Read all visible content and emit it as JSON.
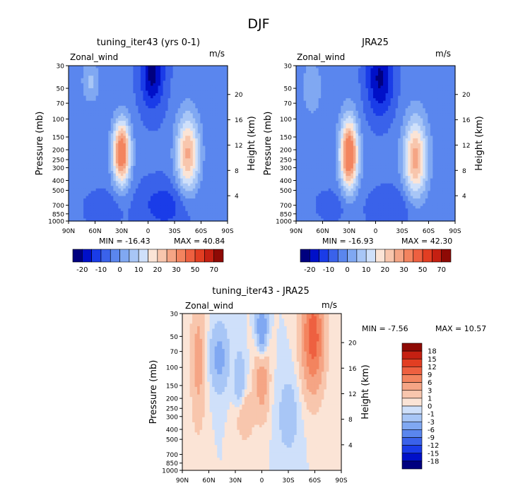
{
  "figure_title": "DJF",
  "chart_data": [
    {
      "type": "contour",
      "title": "tuning_iter43 (yrs 0-1)",
      "variable": "Zonal_wind",
      "units": "m/s",
      "ylabel": "Pressure (mb)",
      "ylabel_right": "Height (km)",
      "x_ticks": [
        "90N",
        "60N",
        "30N",
        "0",
        "30S",
        "60S",
        "90S"
      ],
      "y_ticks": [
        "30",
        "50",
        "70",
        "100",
        "150",
        "200",
        "250",
        "300",
        "400",
        "500",
        "700",
        "850",
        "1000"
      ],
      "height_ticks": [
        "4",
        "8",
        "12",
        "16",
        "20"
      ],
      "min_label": "MIN = -16.43",
      "max_label": "MAX = 40.84",
      "colorbar_levels": [
        "-20",
        "-10",
        "0",
        "10",
        "20",
        "30",
        "50",
        "70"
      ],
      "features": [
        {
          "lat": 30,
          "p": 200,
          "value": 40.84,
          "kind": "max"
        },
        {
          "lat": -45,
          "p": 200,
          "value": 30,
          "kind": "jet"
        },
        {
          "lat": -5,
          "p": 30,
          "value": -16.43,
          "kind": "min"
        }
      ]
    },
    {
      "type": "contour",
      "title": "JRA25",
      "variable": "Zonal_wind",
      "units": "m/s",
      "ylabel": "Pressure (mb)",
      "ylabel_right": "Height (km)",
      "x_ticks": [
        "90N",
        "60N",
        "30N",
        "0",
        "30S",
        "60S",
        "90S"
      ],
      "y_ticks": [
        "30",
        "50",
        "70",
        "100",
        "150",
        "200",
        "250",
        "300",
        "400",
        "500",
        "700",
        "850",
        "1000"
      ],
      "height_ticks": [
        "4",
        "8",
        "12",
        "16",
        "20"
      ],
      "min_label": "MIN = -16.93",
      "max_label": "MAX = 42.30",
      "colorbar_levels": [
        "-20",
        "-10",
        "0",
        "10",
        "20",
        "30",
        "50",
        "70"
      ],
      "features": [
        {
          "lat": 30,
          "p": 200,
          "value": 42.3,
          "kind": "max"
        },
        {
          "lat": -45,
          "p": 250,
          "value": 30,
          "kind": "jet"
        },
        {
          "lat": -5,
          "p": 30,
          "value": -16.93,
          "kind": "min"
        }
      ]
    },
    {
      "type": "contour",
      "title": "tuning_iter43 - JRA25",
      "variable": "Zonal_wind",
      "units": "m/s",
      "ylabel": "Pressure (mb)",
      "ylabel_right": "Height (km)",
      "x_ticks": [
        "90N",
        "60N",
        "30N",
        "0",
        "30S",
        "60S",
        "90S"
      ],
      "y_ticks": [
        "30",
        "50",
        "70",
        "100",
        "150",
        "200",
        "250",
        "300",
        "400",
        "500",
        "700",
        "850",
        "1000"
      ],
      "height_ticks": [
        "4",
        "8",
        "12",
        "16",
        "20"
      ],
      "min_label": "MIN =   -7.56",
      "max_label": "MAX =  10.57",
      "colorbar_levels": [
        "18",
        "15",
        "12",
        "9",
        "6",
        "3",
        "1",
        "0",
        "-1",
        "-3",
        "-6",
        "-9",
        "-12",
        "-15",
        "-18"
      ],
      "features": [
        {
          "lat": -60,
          "p": 30,
          "value": 10.57,
          "kind": "max"
        },
        {
          "lat": 0,
          "p": 150,
          "value": 6,
          "kind": "positive"
        },
        {
          "lat": 0,
          "p": 50,
          "value": -7.56,
          "kind": "min"
        }
      ]
    }
  ],
  "colors": {
    "neg": [
      "#00007f",
      "#0010c8",
      "#1a3ce8",
      "#3a62ea",
      "#5a86ee",
      "#80a8f2",
      "#a8c6f6",
      "#cfe0fa"
    ],
    "pos": [
      "#fbe4d6",
      "#f8c6ad",
      "#f5a585",
      "#f3845f",
      "#ee6040",
      "#e23e22",
      "#c52012",
      "#8e0a05"
    ]
  }
}
